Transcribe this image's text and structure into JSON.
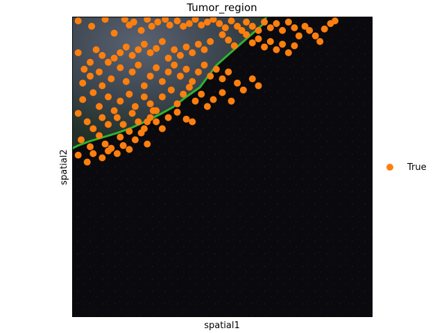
{
  "chart_data": {
    "type": "scatter",
    "title": "Tumor_region",
    "xlabel": "spatial1",
    "ylabel": "spatial2",
    "xlim": [
      0,
      1
    ],
    "ylim": [
      0,
      1
    ],
    "y_inverted": true,
    "grid": false,
    "legend_position": "right",
    "background": "tissue image",
    "series": [
      {
        "name": "True",
        "color": "#ff7f0e",
        "points": [
          [
            0.02,
            0.014
          ],
          [
            0.065,
            0.032
          ],
          [
            0.11,
            0.009
          ],
          [
            0.14,
            0.055
          ],
          [
            0.175,
            0.009
          ],
          [
            0.19,
            0.028
          ],
          [
            0.205,
            0.018
          ],
          [
            0.23,
            0.046
          ],
          [
            0.25,
            0.009
          ],
          [
            0.265,
            0.032
          ],
          [
            0.285,
            0.018
          ],
          [
            0.31,
            0.009
          ],
          [
            0.325,
            0.028
          ],
          [
            0.35,
            0.014
          ],
          [
            0.37,
            0.032
          ],
          [
            0.39,
            0.023
          ],
          [
            0.41,
            0.009
          ],
          [
            0.43,
            0.028
          ],
          [
            0.45,
            0.018
          ],
          [
            0.47,
            0.009
          ],
          [
            0.49,
            0.023
          ],
          [
            0.51,
            0.037
          ],
          [
            0.53,
            0.014
          ],
          [
            0.55,
            0.032
          ],
          [
            0.565,
            0.046
          ],
          [
            0.58,
            0.018
          ],
          [
            0.6,
            0.032
          ],
          [
            0.62,
            0.046
          ],
          [
            0.64,
            0.018
          ],
          [
            0.66,
            0.037
          ],
          [
            0.68,
            0.023
          ],
          [
            0.7,
            0.046
          ],
          [
            0.72,
            0.018
          ],
          [
            0.74,
            0.037
          ],
          [
            0.755,
            0.064
          ],
          [
            0.775,
            0.032
          ],
          [
            0.79,
            0.046
          ],
          [
            0.81,
            0.064
          ],
          [
            0.825,
            0.083
          ],
          [
            0.84,
            0.041
          ],
          [
            0.86,
            0.023
          ],
          [
            0.875,
            0.014
          ],
          [
            0.58,
            0.06
          ],
          [
            0.6,
            0.087
          ],
          [
            0.62,
            0.074
          ],
          [
            0.64,
            0.101
          ],
          [
            0.66,
            0.083
          ],
          [
            0.68,
            0.11
          ],
          [
            0.7,
            0.092
          ],
          [
            0.72,
            0.12
          ],
          [
            0.74,
            0.097
          ],
          [
            0.5,
            0.06
          ],
          [
            0.52,
            0.078
          ],
          [
            0.54,
            0.097
          ],
          [
            0.46,
            0.083
          ],
          [
            0.44,
            0.11
          ],
          [
            0.42,
            0.092
          ],
          [
            0.4,
            0.12
          ],
          [
            0.38,
            0.101
          ],
          [
            0.36,
            0.129
          ],
          [
            0.34,
            0.11
          ],
          [
            0.32,
            0.138
          ],
          [
            0.3,
            0.083
          ],
          [
            0.28,
            0.106
          ],
          [
            0.26,
            0.12
          ],
          [
            0.24,
            0.092
          ],
          [
            0.22,
            0.11
          ],
          [
            0.2,
            0.129
          ],
          [
            0.18,
            0.101
          ],
          [
            0.16,
            0.12
          ],
          [
            0.14,
            0.138
          ],
          [
            0.12,
            0.152
          ],
          [
            0.1,
            0.129
          ],
          [
            0.08,
            0.11
          ],
          [
            0.06,
            0.152
          ],
          [
            0.04,
            0.175
          ],
          [
            0.02,
            0.12
          ],
          [
            0.035,
            0.221
          ],
          [
            0.06,
            0.198
          ],
          [
            0.09,
            0.184
          ],
          [
            0.1,
            0.23
          ],
          [
            0.13,
            0.207
          ],
          [
            0.16,
            0.17
          ],
          [
            0.18,
            0.216
          ],
          [
            0.2,
            0.184
          ],
          [
            0.22,
            0.161
          ],
          [
            0.24,
            0.23
          ],
          [
            0.26,
            0.198
          ],
          [
            0.28,
            0.17
          ],
          [
            0.3,
            0.216
          ],
          [
            0.32,
            0.184
          ],
          [
            0.34,
            0.161
          ],
          [
            0.36,
            0.198
          ],
          [
            0.38,
            0.175
          ],
          [
            0.4,
            0.216
          ],
          [
            0.42,
            0.184
          ],
          [
            0.44,
            0.161
          ],
          [
            0.46,
            0.198
          ],
          [
            0.48,
            0.175
          ],
          [
            0.5,
            0.207
          ],
          [
            0.52,
            0.184
          ],
          [
            0.55,
            0.221
          ],
          [
            0.57,
            0.244
          ],
          [
            0.6,
            0.207
          ],
          [
            0.62,
            0.23
          ],
          [
            0.035,
            0.276
          ],
          [
            0.07,
            0.253
          ],
          [
            0.09,
            0.299
          ],
          [
            0.12,
            0.267
          ],
          [
            0.14,
            0.313
          ],
          [
            0.16,
            0.281
          ],
          [
            0.19,
            0.258
          ],
          [
            0.21,
            0.299
          ],
          [
            0.24,
            0.267
          ],
          [
            0.26,
            0.29
          ],
          [
            0.28,
            0.313
          ],
          [
            0.3,
            0.267
          ],
          [
            0.33,
            0.244
          ],
          [
            0.35,
            0.29
          ],
          [
            0.37,
            0.258
          ],
          [
            0.39,
            0.235
          ],
          [
            0.41,
            0.281
          ],
          [
            0.43,
            0.258
          ],
          [
            0.45,
            0.299
          ],
          [
            0.47,
            0.276
          ],
          [
            0.5,
            0.253
          ],
          [
            0.53,
            0.281
          ],
          [
            0.02,
            0.322
          ],
          [
            0.05,
            0.35
          ],
          [
            0.07,
            0.373
          ],
          [
            0.1,
            0.336
          ],
          [
            0.12,
            0.359
          ],
          [
            0.15,
            0.336
          ],
          [
            0.17,
            0.359
          ],
          [
            0.2,
            0.322
          ],
          [
            0.22,
            0.35
          ],
          [
            0.24,
            0.373
          ],
          [
            0.26,
            0.336
          ],
          [
            0.28,
            0.35
          ],
          [
            0.3,
            0.373
          ],
          [
            0.32,
            0.336
          ],
          [
            0.35,
            0.318
          ],
          [
            0.38,
            0.341
          ],
          [
            0.4,
            0.35
          ],
          [
            0.03,
            0.41
          ],
          [
            0.06,
            0.433
          ],
          [
            0.09,
            0.396
          ],
          [
            0.11,
            0.424
          ],
          [
            0.13,
            0.438
          ],
          [
            0.16,
            0.401
          ],
          [
            0.19,
            0.382
          ],
          [
            0.21,
            0.41
          ],
          [
            0.23,
            0.387
          ],
          [
            0.25,
            0.424
          ],
          [
            0.02,
            0.461
          ],
          [
            0.05,
            0.484
          ],
          [
            0.07,
            0.456
          ],
          [
            0.1,
            0.47
          ],
          [
            0.12,
            0.447
          ],
          [
            0.15,
            0.456
          ],
          [
            0.17,
            0.429
          ],
          [
            0.19,
            0.442
          ],
          [
            0.25,
            0.35
          ],
          [
            0.27,
            0.313
          ]
        ]
      }
    ]
  }
}
